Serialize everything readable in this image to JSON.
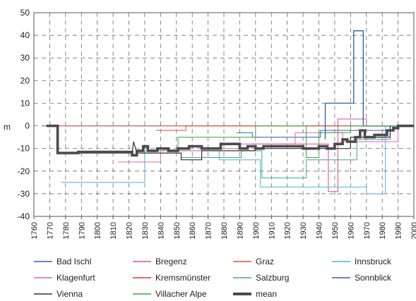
{
  "chart_data": {
    "type": "line",
    "title": "",
    "xlabel": "",
    "ylabel": "m",
    "xlim": [
      1760,
      2000
    ],
    "ylim": [
      -40,
      50
    ],
    "x_ticks": [
      1760,
      1770,
      1780,
      1790,
      1800,
      1810,
      1820,
      1830,
      1840,
      1850,
      1860,
      1870,
      1880,
      1890,
      1900,
      1910,
      1920,
      1930,
      1940,
      1950,
      1960,
      1970,
      1980,
      1990,
      2000
    ],
    "y_ticks": [
      -40,
      -30,
      -20,
      -10,
      0,
      10,
      20,
      30,
      40,
      50
    ],
    "grid": "dashed, both axes",
    "legend_position": "bottom",
    "series": [
      {
        "name": "Bad Ischl",
        "color": "#3b5ea8",
        "width": 1,
        "points": [
          [
            1888,
            -3
          ],
          [
            1898,
            -3
          ],
          [
            1898,
            -5
          ],
          [
            1941,
            -5
          ],
          [
            1941,
            -2
          ],
          [
            1985,
            -2
          ],
          [
            1985,
            0
          ],
          [
            2000,
            0
          ]
        ]
      },
      {
        "name": "Bregenz",
        "color": "#d94a9c",
        "width": 1,
        "points": [
          [
            1897,
            -8
          ],
          [
            1946,
            -8
          ],
          [
            1946,
            -29
          ],
          [
            1952,
            -29
          ],
          [
            1952,
            3
          ],
          [
            1970,
            3
          ],
          [
            1970,
            0
          ],
          [
            2000,
            0
          ]
        ]
      },
      {
        "name": "Graz",
        "color": "#e0532f",
        "width": 1,
        "points": [
          [
            1837,
            -2
          ],
          [
            1856,
            -2
          ],
          [
            1856,
            0
          ],
          [
            2000,
            0
          ]
        ]
      },
      {
        "name": "Innsbruck",
        "color": "#4fb0dc",
        "width": 1,
        "points": [
          [
            1777,
            -25
          ],
          [
            1830,
            -25
          ],
          [
            1830,
            -11
          ],
          [
            1877,
            -11
          ],
          [
            1877,
            -15
          ],
          [
            1903,
            -15
          ],
          [
            1903,
            -27
          ],
          [
            1970,
            -27
          ],
          [
            1970,
            -30
          ],
          [
            1982,
            -30
          ],
          [
            1982,
            0
          ],
          [
            2000,
            0
          ]
        ]
      },
      {
        "name": "Klagenfurt",
        "color": "#e266b0",
        "width": 1,
        "points": [
          [
            1813,
            -16
          ],
          [
            1840,
            -16
          ],
          [
            1840,
            -11
          ],
          [
            1870,
            -11
          ],
          [
            1870,
            -10
          ],
          [
            1890,
            -10
          ],
          [
            1890,
            -8
          ],
          [
            1925,
            -8
          ],
          [
            1925,
            -3
          ],
          [
            1955,
            -3
          ],
          [
            1955,
            -7
          ],
          [
            1990,
            -7
          ],
          [
            1990,
            0
          ],
          [
            2000,
            0
          ]
        ]
      },
      {
        "name": "Kremsmünster",
        "color": "#cc3f2a",
        "width": 1,
        "points": [
          [
            1765,
            0
          ],
          [
            2000,
            0
          ]
        ]
      },
      {
        "name": "Salzburg",
        "color": "#3aa59a",
        "width": 1,
        "points": [
          [
            1853,
            -14
          ],
          [
            1891,
            -14
          ],
          [
            1891,
            -11
          ],
          [
            1904,
            -11
          ],
          [
            1904,
            -23
          ],
          [
            1932,
            -23
          ],
          [
            1932,
            -15
          ],
          [
            1964,
            -15
          ],
          [
            1964,
            -6
          ],
          [
            1985,
            -6
          ],
          [
            1985,
            0
          ],
          [
            2000,
            0
          ]
        ]
      },
      {
        "name": "Sonnblick",
        "color": "#2b5fad",
        "width": 1.3,
        "points": [
          [
            1944,
            -6
          ],
          [
            1944,
            10
          ],
          [
            1962,
            10
          ],
          [
            1962,
            42
          ],
          [
            1968,
            42
          ],
          [
            1968,
            0
          ],
          [
            2000,
            0
          ]
        ]
      },
      {
        "name": "Vienna",
        "color": "#333333",
        "width": 1.2,
        "points": [
          [
            1775,
            -12
          ],
          [
            1822,
            -12
          ],
          [
            1823,
            -7
          ],
          [
            1825,
            -12
          ],
          [
            1853,
            -12
          ],
          [
            1853,
            -15
          ],
          [
            1866,
            -15
          ],
          [
            1866,
            -11
          ],
          [
            1900,
            -11
          ],
          [
            1900,
            -10
          ],
          [
            1960,
            -10
          ],
          [
            1960,
            -5
          ],
          [
            1985,
            -5
          ],
          [
            1985,
            0
          ],
          [
            2000,
            0
          ]
        ]
      },
      {
        "name": "Villacher Alpe",
        "color": "#3aa83c",
        "width": 1,
        "points": [
          [
            1851,
            -10
          ],
          [
            1851,
            -5
          ],
          [
            1900,
            -5
          ],
          [
            1900,
            0
          ],
          [
            1932,
            0
          ],
          [
            1932,
            -14
          ],
          [
            1940,
            -14
          ],
          [
            1940,
            -3
          ],
          [
            1960,
            -3
          ],
          [
            1960,
            0
          ],
          [
            2000,
            0
          ]
        ]
      },
      {
        "name": "mean",
        "color": "#4a4a4a",
        "width": 3.6,
        "points": [
          [
            1768,
            0
          ],
          [
            1775,
            0
          ],
          [
            1775,
            -12
          ],
          [
            1788,
            -12
          ],
          [
            1788,
            -11.5
          ],
          [
            1822,
            -11.5
          ],
          [
            1822,
            -13
          ],
          [
            1825,
            -13
          ],
          [
            1825,
            -11
          ],
          [
            1829,
            -11
          ],
          [
            1829,
            -9
          ],
          [
            1832,
            -9
          ],
          [
            1832,
            -11
          ],
          [
            1838,
            -11
          ],
          [
            1838,
            -10
          ],
          [
            1845,
            -10
          ],
          [
            1845,
            -11
          ],
          [
            1851,
            -11
          ],
          [
            1851,
            -10
          ],
          [
            1858,
            -10
          ],
          [
            1858,
            -9
          ],
          [
            1866,
            -9
          ],
          [
            1866,
            -10
          ],
          [
            1878,
            -10
          ],
          [
            1878,
            -8
          ],
          [
            1890,
            -8
          ],
          [
            1890,
            -10
          ],
          [
            1895,
            -10
          ],
          [
            1895,
            -9
          ],
          [
            1900,
            -9
          ],
          [
            1900,
            -10
          ],
          [
            1905,
            -10
          ],
          [
            1905,
            -9
          ],
          [
            1930,
            -9
          ],
          [
            1930,
            -10
          ],
          [
            1940,
            -10
          ],
          [
            1940,
            -9
          ],
          [
            1945,
            -9
          ],
          [
            1945,
            -10
          ],
          [
            1950,
            -10
          ],
          [
            1950,
            -8
          ],
          [
            1955,
            -8
          ],
          [
            1955,
            -6
          ],
          [
            1958,
            -6
          ],
          [
            1958,
            -7
          ],
          [
            1963,
            -7
          ],
          [
            1963,
            -5
          ],
          [
            1966,
            -5
          ],
          [
            1966,
            -2
          ],
          [
            1969,
            -2
          ],
          [
            1969,
            -5
          ],
          [
            1975,
            -5
          ],
          [
            1975,
            -4
          ],
          [
            1983,
            -4
          ],
          [
            1983,
            -2
          ],
          [
            1987,
            -2
          ],
          [
            1987,
            -1
          ],
          [
            1990,
            -1
          ],
          [
            1990,
            0
          ],
          [
            2000,
            0
          ]
        ]
      }
    ]
  }
}
